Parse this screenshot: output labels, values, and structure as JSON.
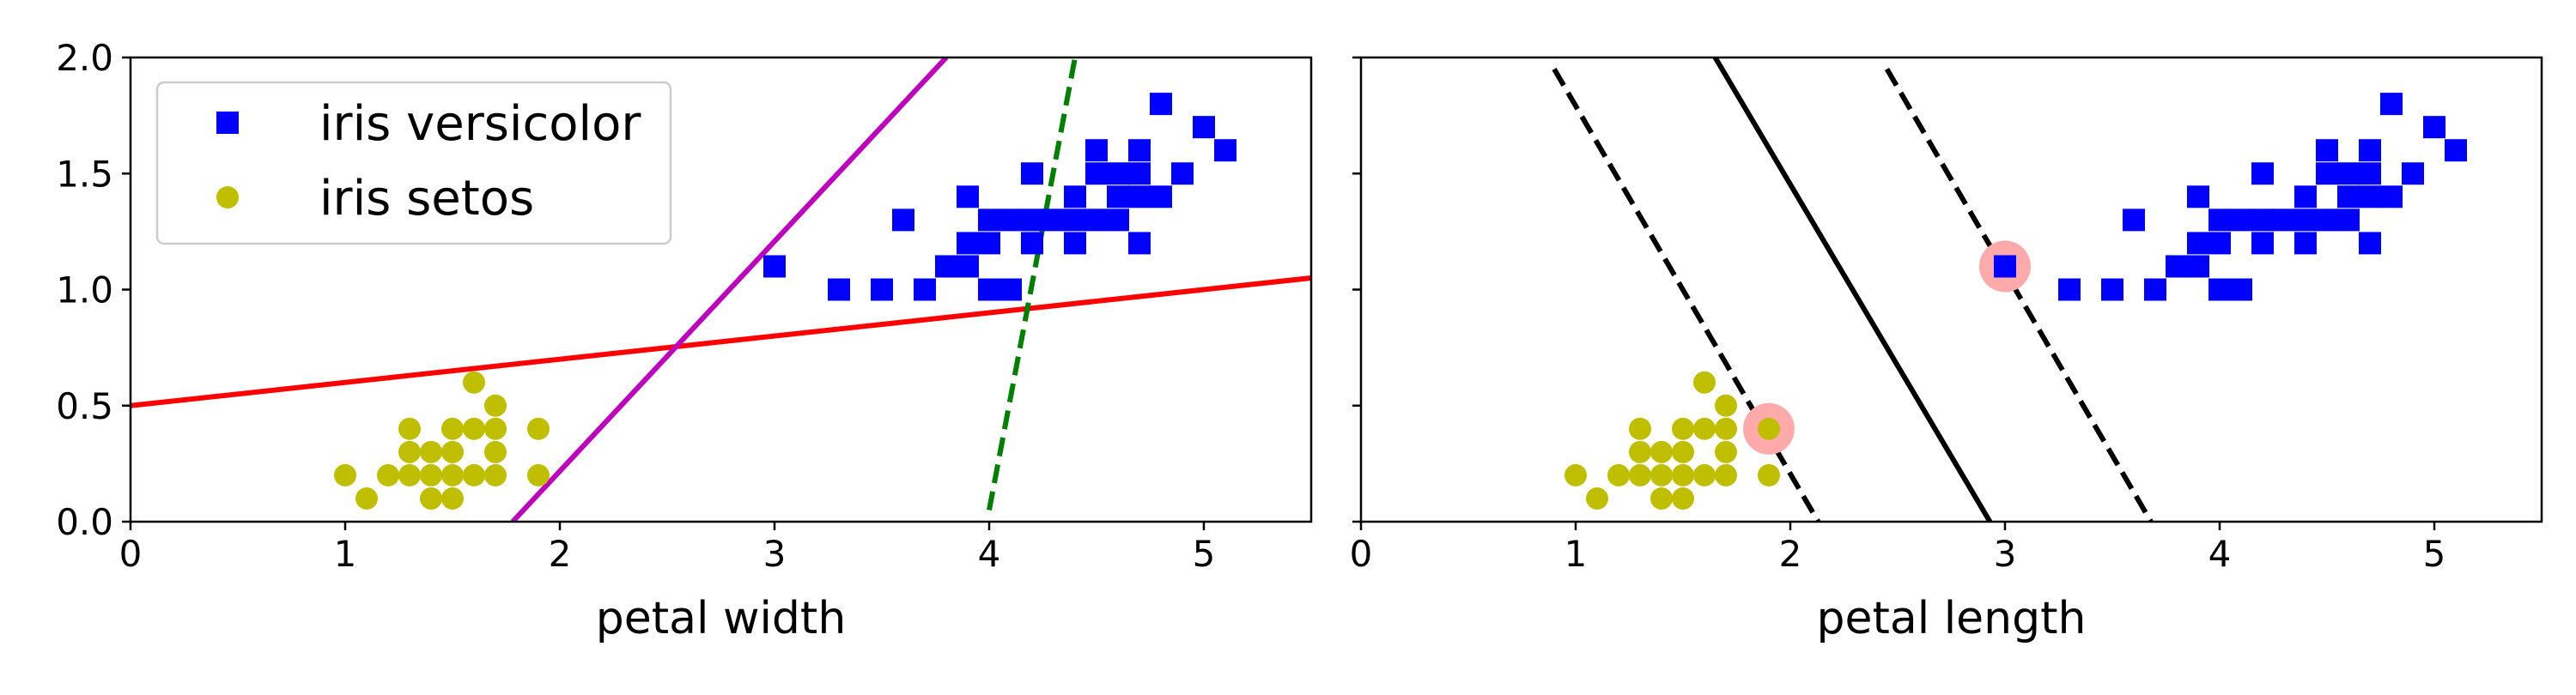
{
  "chart_data": [
    {
      "type": "scatter",
      "xlabel": "petal width",
      "ylabel": "",
      "xlim": [
        0,
        5.5
      ],
      "ylim": [
        0,
        2.0
      ],
      "xticks": [
        0,
        1,
        2,
        3,
        4,
        5
      ],
      "yticks": [
        0.0,
        0.5,
        1.0,
        1.5,
        2.0
      ],
      "xtick_labels": [
        "0",
        "1",
        "2",
        "3",
        "4",
        "5"
      ],
      "ytick_labels": [
        "0.0",
        "0.5",
        "1.0",
        "1.5",
        "2.0"
      ],
      "grid": false,
      "legend": {
        "placement": "top-left",
        "entries": [
          {
            "label": "iris versicolor",
            "marker": "square",
            "color": "#0000ff"
          },
          {
            "label": "iris setos",
            "marker": "circle",
            "color": "#bfbf00"
          }
        ]
      },
      "series": [
        {
          "name": "iris versicolor",
          "marker": "square",
          "color": "#0000ff",
          "points": [
            [
              3.0,
              1.1
            ],
            [
              3.3,
              1.0
            ],
            [
              3.5,
              1.0
            ],
            [
              3.6,
              1.3
            ],
            [
              3.7,
              1.0
            ],
            [
              3.8,
              1.1
            ],
            [
              3.9,
              1.1
            ],
            [
              3.9,
              1.2
            ],
            [
              3.9,
              1.4
            ],
            [
              4.0,
              1.0
            ],
            [
              4.0,
              1.2
            ],
            [
              4.0,
              1.3
            ],
            [
              4.1,
              1.0
            ],
            [
              4.1,
              1.3
            ],
            [
              4.2,
              1.2
            ],
            [
              4.2,
              1.3
            ],
            [
              4.2,
              1.5
            ],
            [
              4.3,
              1.3
            ],
            [
              4.4,
              1.2
            ],
            [
              4.4,
              1.3
            ],
            [
              4.4,
              1.4
            ],
            [
              4.5,
              1.3
            ],
            [
              4.5,
              1.5
            ],
            [
              4.5,
              1.6
            ],
            [
              4.6,
              1.3
            ],
            [
              4.6,
              1.4
            ],
            [
              4.6,
              1.5
            ],
            [
              4.7,
              1.2
            ],
            [
              4.7,
              1.4
            ],
            [
              4.7,
              1.5
            ],
            [
              4.7,
              1.6
            ],
            [
              4.8,
              1.4
            ],
            [
              4.8,
              1.8
            ],
            [
              4.9,
              1.5
            ],
            [
              5.0,
              1.7
            ],
            [
              5.1,
              1.6
            ]
          ]
        },
        {
          "name": "iris setos",
          "marker": "circle",
          "color": "#bfbf00",
          "points": [
            [
              1.0,
              0.2
            ],
            [
              1.1,
              0.1
            ],
            [
              1.2,
              0.2
            ],
            [
              1.3,
              0.2
            ],
            [
              1.3,
              0.3
            ],
            [
              1.3,
              0.4
            ],
            [
              1.4,
              0.1
            ],
            [
              1.4,
              0.2
            ],
            [
              1.4,
              0.3
            ],
            [
              1.5,
              0.1
            ],
            [
              1.5,
              0.2
            ],
            [
              1.5,
              0.3
            ],
            [
              1.5,
              0.4
            ],
            [
              1.6,
              0.2
            ],
            [
              1.6,
              0.4
            ],
            [
              1.6,
              0.6
            ],
            [
              1.7,
              0.2
            ],
            [
              1.7,
              0.3
            ],
            [
              1.7,
              0.4
            ],
            [
              1.7,
              0.5
            ],
            [
              1.9,
              0.2
            ],
            [
              1.9,
              0.4
            ]
          ]
        }
      ],
      "lines": [
        {
          "color": "#ff0000",
          "style": "solid",
          "points": [
            [
              0,
              0.5
            ],
            [
              5.5,
              1.05
            ]
          ]
        },
        {
          "color": "#bf00bf",
          "style": "solid",
          "points": [
            [
              1.78,
              0.0
            ],
            [
              3.8,
              2.0
            ]
          ]
        },
        {
          "color": "#008000",
          "style": "dashed",
          "points": [
            [
              4.0,
              0.05
            ],
            [
              4.4,
              2.0
            ]
          ]
        }
      ]
    },
    {
      "type": "scatter",
      "xlabel": "petal length",
      "ylabel": "",
      "xlim": [
        0,
        5.5
      ],
      "ylim": [
        0,
        2.0
      ],
      "xticks": [
        0,
        1,
        2,
        3,
        4,
        5
      ],
      "yticks": [
        0.0,
        0.5,
        1.0,
        1.5,
        2.0
      ],
      "xtick_labels": [
        "0",
        "1",
        "2",
        "3",
        "4",
        "5"
      ],
      "ytick_labels": [],
      "grid": false,
      "series": [
        {
          "name": "iris versicolor",
          "marker": "square",
          "color": "#0000ff",
          "points": [
            [
              3.0,
              1.1
            ],
            [
              3.3,
              1.0
            ],
            [
              3.5,
              1.0
            ],
            [
              3.6,
              1.3
            ],
            [
              3.7,
              1.0
            ],
            [
              3.8,
              1.1
            ],
            [
              3.9,
              1.1
            ],
            [
              3.9,
              1.2
            ],
            [
              3.9,
              1.4
            ],
            [
              4.0,
              1.0
            ],
            [
              4.0,
              1.2
            ],
            [
              4.0,
              1.3
            ],
            [
              4.1,
              1.0
            ],
            [
              4.1,
              1.3
            ],
            [
              4.2,
              1.2
            ],
            [
              4.2,
              1.3
            ],
            [
              4.2,
              1.5
            ],
            [
              4.3,
              1.3
            ],
            [
              4.4,
              1.2
            ],
            [
              4.4,
              1.3
            ],
            [
              4.4,
              1.4
            ],
            [
              4.5,
              1.3
            ],
            [
              4.5,
              1.5
            ],
            [
              4.5,
              1.6
            ],
            [
              4.6,
              1.3
            ],
            [
              4.6,
              1.4
            ],
            [
              4.6,
              1.5
            ],
            [
              4.7,
              1.2
            ],
            [
              4.7,
              1.4
            ],
            [
              4.7,
              1.5
            ],
            [
              4.7,
              1.6
            ],
            [
              4.8,
              1.4
            ],
            [
              4.8,
              1.8
            ],
            [
              4.9,
              1.5
            ],
            [
              5.0,
              1.7
            ],
            [
              5.1,
              1.6
            ]
          ]
        },
        {
          "name": "iris setos",
          "marker": "circle",
          "color": "#bfbf00",
          "points": [
            [
              1.0,
              0.2
            ],
            [
              1.1,
              0.1
            ],
            [
              1.2,
              0.2
            ],
            [
              1.3,
              0.2
            ],
            [
              1.3,
              0.3
            ],
            [
              1.3,
              0.4
            ],
            [
              1.4,
              0.1
            ],
            [
              1.4,
              0.2
            ],
            [
              1.4,
              0.3
            ],
            [
              1.5,
              0.1
            ],
            [
              1.5,
              0.2
            ],
            [
              1.5,
              0.3
            ],
            [
              1.5,
              0.4
            ],
            [
              1.6,
              0.2
            ],
            [
              1.6,
              0.4
            ],
            [
              1.6,
              0.6
            ],
            [
              1.7,
              0.2
            ],
            [
              1.7,
              0.3
            ],
            [
              1.7,
              0.4
            ],
            [
              1.7,
              0.5
            ],
            [
              1.9,
              0.2
            ],
            [
              1.9,
              0.4
            ]
          ]
        }
      ],
      "support_vectors": {
        "color": "#ffaaaa",
        "points": [
          [
            1.9,
            0.4
          ],
          [
            3.0,
            1.1
          ]
        ]
      },
      "lines": [
        {
          "color": "#000000",
          "style": "solid",
          "points": [
            [
              1.65,
              2.0
            ],
            [
              2.93,
              0.0
            ]
          ]
        },
        {
          "color": "#000000",
          "style": "dashed",
          "points": [
            [
              0.9,
              1.95
            ],
            [
              2.13,
              0.0
            ]
          ]
        },
        {
          "color": "#000000",
          "style": "dashed",
          "points": [
            [
              2.45,
              1.95
            ],
            [
              3.68,
              0.0
            ]
          ]
        }
      ]
    }
  ]
}
